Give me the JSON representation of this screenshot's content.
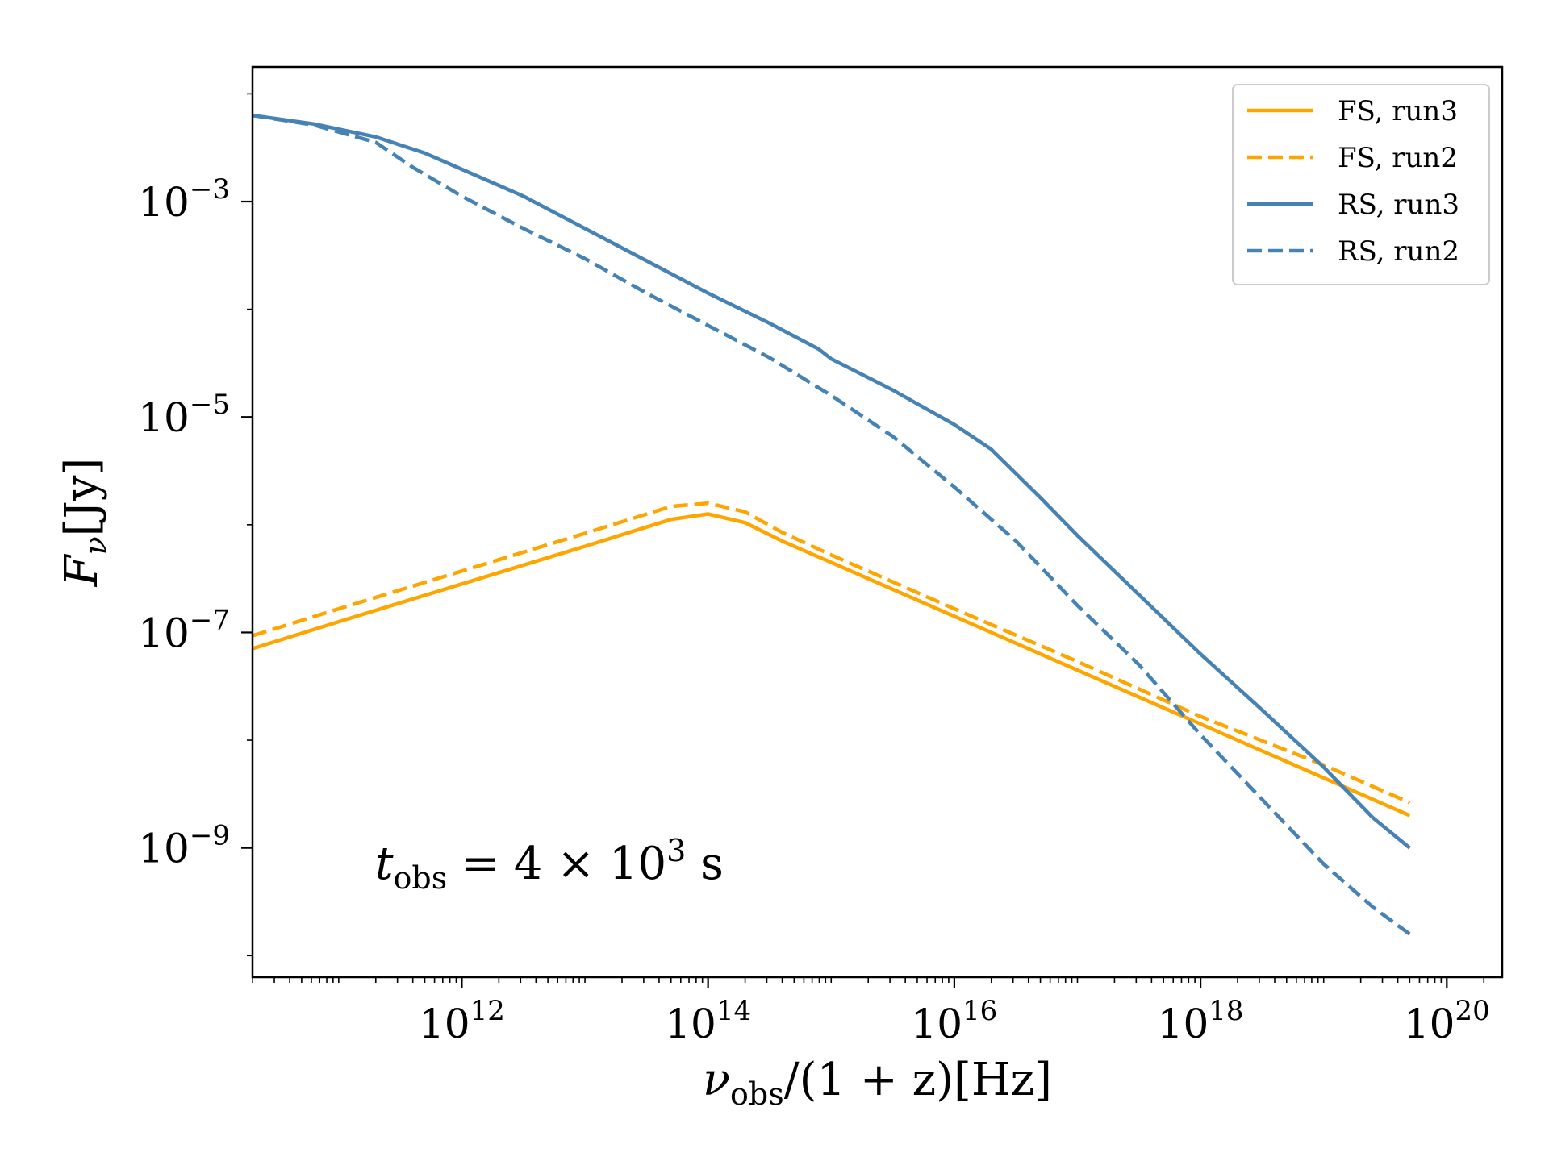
{
  "chart_data": {
    "type": "line",
    "title": "",
    "xlabel": {
      "base": "ν",
      "sub": "obs",
      "rest": "/(1 + z)[Hz]"
    },
    "ylabel": {
      "base": "F",
      "sub": "ν",
      "rest": "[Jy]"
    },
    "xscale": "log",
    "yscale": "log",
    "xlim_log10": [
      10.3,
      20.45
    ],
    "ylim_log10": [
      -10.2,
      -1.75
    ],
    "x_ticks": [
      {
        "exp": 12,
        "label_base": "10",
        "label_exp": "12"
      },
      {
        "exp": 14,
        "label_base": "10",
        "label_exp": "14"
      },
      {
        "exp": 16,
        "label_base": "10",
        "label_exp": "16"
      },
      {
        "exp": 18,
        "label_base": "10",
        "label_exp": "18"
      },
      {
        "exp": 20,
        "label_base": "10",
        "label_exp": "20"
      }
    ],
    "y_ticks": [
      {
        "exp": -3,
        "label_base": "10",
        "label_exp": "−3"
      },
      {
        "exp": -5,
        "label_base": "10",
        "label_exp": "−5"
      },
      {
        "exp": -7,
        "label_base": "10",
        "label_exp": "−7"
      },
      {
        "exp": -9,
        "label_base": "10",
        "label_exp": "−9"
      }
    ],
    "annotation": {
      "t": "t",
      "sub": "obs",
      "rest": " = 4 × 10",
      "sup": "3",
      "tail": " s",
      "placement": "lower-left"
    },
    "legend": {
      "placement": "top-right"
    },
    "colors": {
      "FS": "#FFA500",
      "RS": "#4682B4"
    },
    "series": [
      {
        "name": "FS, run3",
        "color": "#FFA500",
        "style": "solid",
        "log10_x": [
          10.3,
          11.0,
          12.0,
          13.0,
          13.7,
          14.0,
          14.3,
          14.6,
          15.0,
          16.0,
          17.0,
          18.0,
          19.0,
          19.7
        ],
        "log10_y": [
          -7.15,
          -6.9,
          -6.55,
          -6.2,
          -5.95,
          -5.9,
          -5.98,
          -6.15,
          -6.35,
          -6.85,
          -7.35,
          -7.85,
          -8.35,
          -8.7
        ]
      },
      {
        "name": "FS, run2",
        "color": "#FFA500",
        "style": "dashed",
        "log10_x": [
          10.3,
          11.0,
          12.0,
          13.0,
          13.7,
          14.0,
          14.3,
          14.6,
          15.0,
          16.0,
          17.0,
          18.0,
          19.0,
          19.7
        ],
        "log10_y": [
          -7.03,
          -6.78,
          -6.43,
          -6.08,
          -5.83,
          -5.8,
          -5.88,
          -6.07,
          -6.28,
          -6.78,
          -7.27,
          -7.78,
          -8.23,
          -8.58
        ]
      },
      {
        "name": "RS, run3",
        "color": "#4682B4",
        "style": "solid",
        "log10_x": [
          10.3,
          10.8,
          11.3,
          11.7,
          12.0,
          12.5,
          13.0,
          13.5,
          14.0,
          14.5,
          14.9,
          15.0,
          15.5,
          16.0,
          16.3,
          16.7,
          17.0,
          17.5,
          18.0,
          18.5,
          19.0,
          19.4,
          19.7
        ],
        "log10_y": [
          -2.2,
          -2.28,
          -2.4,
          -2.55,
          -2.7,
          -2.95,
          -3.25,
          -3.55,
          -3.85,
          -4.13,
          -4.37,
          -4.46,
          -4.75,
          -5.07,
          -5.3,
          -5.75,
          -6.1,
          -6.65,
          -7.2,
          -7.72,
          -8.25,
          -8.72,
          -9.0
        ]
      },
      {
        "name": "RS, run2",
        "color": "#4682B4",
        "style": "dashed",
        "log10_x": [
          10.3,
          10.8,
          11.3,
          11.6,
          12.0,
          12.5,
          13.0,
          13.5,
          14.0,
          14.5,
          15.0,
          15.5,
          16.0,
          16.5,
          17.0,
          17.5,
          18.0,
          18.5,
          19.0,
          19.4,
          19.7
        ],
        "log10_y": [
          -2.2,
          -2.29,
          -2.45,
          -2.68,
          -2.95,
          -3.25,
          -3.53,
          -3.85,
          -4.15,
          -4.45,
          -4.8,
          -5.18,
          -5.65,
          -6.15,
          -6.75,
          -7.3,
          -7.95,
          -8.55,
          -9.15,
          -9.55,
          -9.8
        ]
      }
    ]
  }
}
